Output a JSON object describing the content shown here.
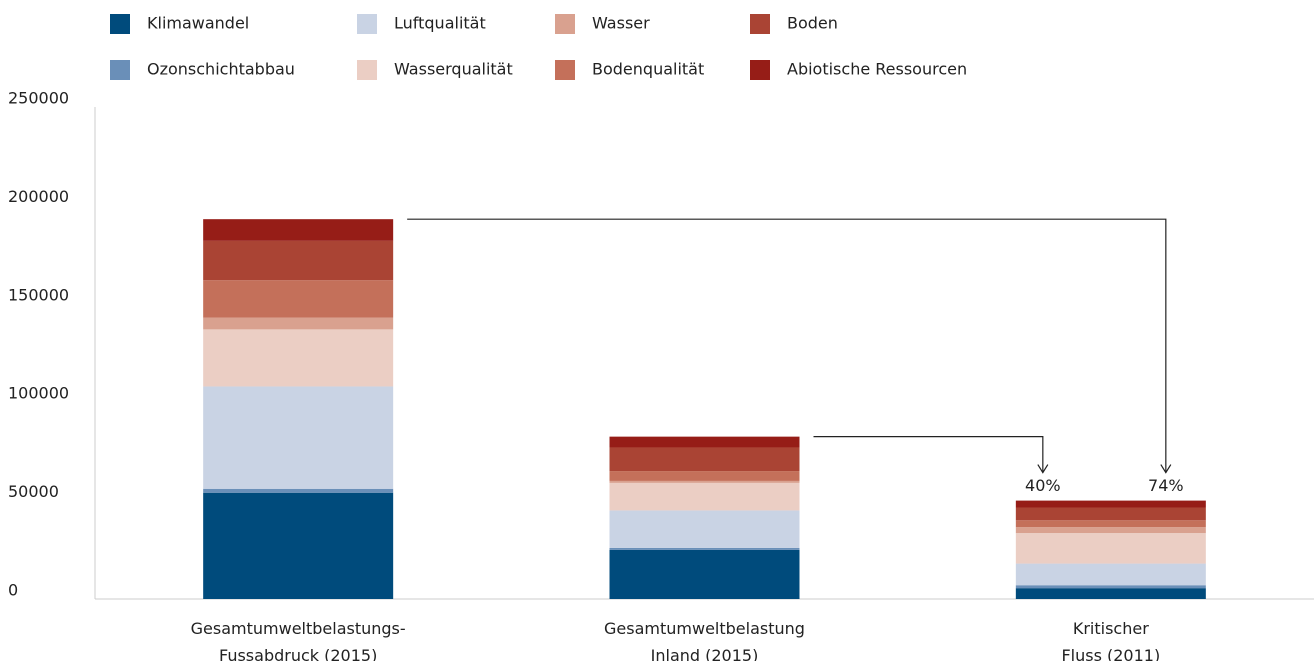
{
  "chart_data": {
    "type": "stacked_bar",
    "categories": [
      [
        "Gesamtumweltbelastungs-",
        "Fussabdruck (2015)"
      ],
      [
        "Gesamtumweltbelastung",
        "Inland (2015)"
      ],
      [
        "Kritischer",
        "Fluss (2011)"
      ]
    ],
    "series": [
      {
        "name": "Klimawandel",
        "color": "#004b7c",
        "values": [
          54000,
          25000,
          5500
        ]
      },
      {
        "name": "Ozonschichtabbau",
        "color": "#6a8fb8",
        "values": [
          2000,
          1000,
          1500
        ]
      },
      {
        "name": "Luftqualität",
        "color": "#c9d3e4",
        "values": [
          52000,
          19000,
          11000
        ]
      },
      {
        "name": "Wasserqualität",
        "color": "#ebcec4",
        "values": [
          29000,
          14000,
          15500
        ]
      },
      {
        "name": "Wasser",
        "color": "#d9a18f",
        "values": [
          6000,
          1000,
          3000
        ]
      },
      {
        "name": "Bodenqualität",
        "color": "#c4705a",
        "values": [
          19000,
          5000,
          3500
        ]
      },
      {
        "name": "Boden",
        "color": "#aa4434",
        "values": [
          20000,
          12000,
          6500
        ]
      },
      {
        "name": "Abiotische Ressourcen",
        "color": "#961d17",
        "values": [
          11000,
          5500,
          3500
        ]
      }
    ],
    "annotations": [
      {
        "text": "40%"
      },
      {
        "text": "74%"
      }
    ],
    "ylim": [
      0,
      250000
    ],
    "yticks": [
      0,
      50000,
      100000,
      150000,
      200000,
      250000
    ],
    "grid": false
  }
}
